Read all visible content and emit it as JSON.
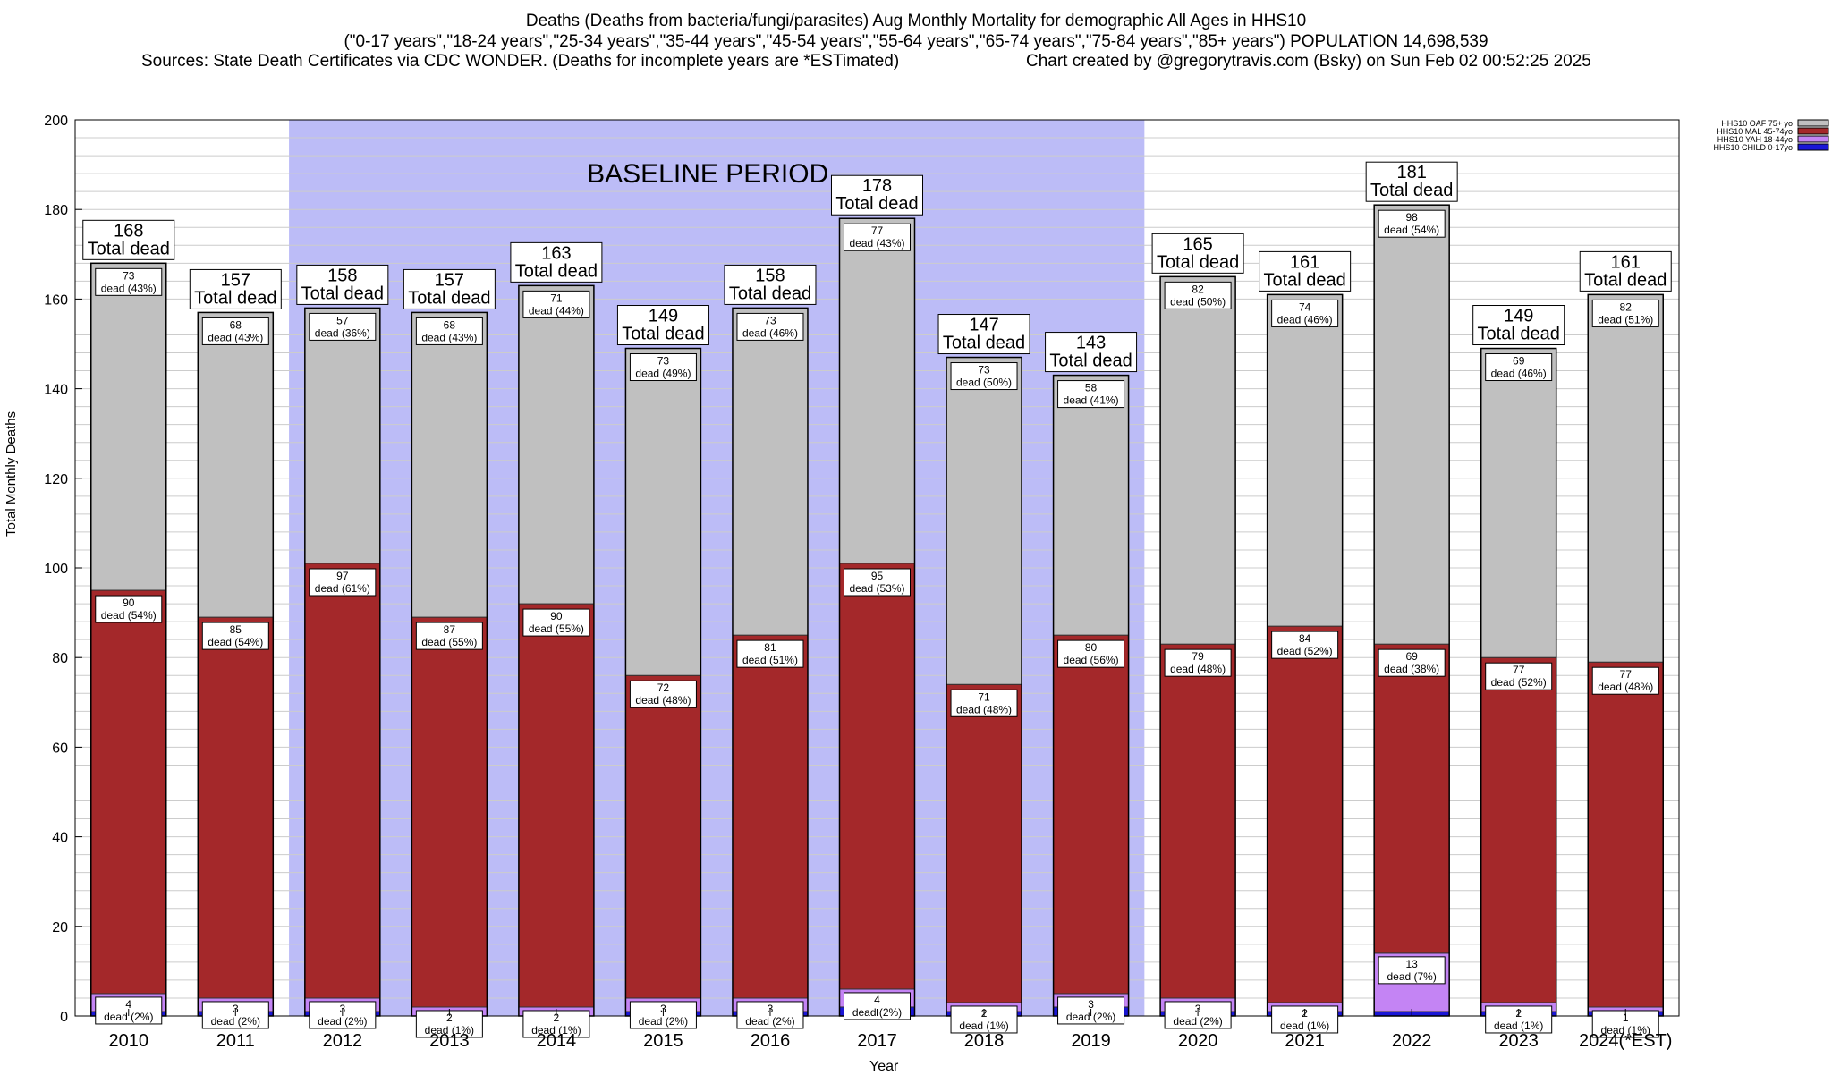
{
  "title": {
    "line1": "Deaths (Deaths from bacteria/fungi/parasites) Aug Monthly Mortality for demographic All Ages in HHS10",
    "line2": "(\"0-17 years\",\"18-24 years\",\"25-34 years\",\"35-44 years\",\"45-54 years\",\"55-64 years\",\"65-74 years\",\"75-84 years\",\"85+ years\") POPULATION 14,698,539",
    "sources": "Sources: State Death Certificates via CDC WONDER. (Deaths for incomplete years are *ESTimated)",
    "credit": "Chart created by @gregorytravis.com (Bsky) on Sun Feb 02 00:52:25 2025"
  },
  "chart_data": {
    "type": "bar",
    "stacked": true,
    "xlabel": "Year",
    "ylabel": "Total Monthly Deaths",
    "ylim": [
      0,
      200
    ],
    "yticks": [
      0,
      20,
      40,
      60,
      80,
      100,
      120,
      140,
      160,
      180,
      200
    ],
    "grid": true,
    "legend_position": "top-right",
    "categories": [
      "2010",
      "2011",
      "2012",
      "2013",
      "2014",
      "2015",
      "2016",
      "2017",
      "2018",
      "2019",
      "2020",
      "2021",
      "2022",
      "2023",
      "2024(*EST)"
    ],
    "baseline": {
      "label": "BASELINE PERIOD",
      "from": "2012",
      "to": "2019",
      "color": "#bcbcf7"
    },
    "total_label_suffix": "Total dead",
    "segment_label_word": "dead",
    "series": [
      {
        "name": "HHS10 CHILD 0-17yo",
        "color": "#1a16d6",
        "values": [
          1,
          1,
          1,
          0,
          0,
          1,
          1,
          2,
          1,
          2,
          1,
          1,
          1,
          1,
          1
        ]
      },
      {
        "name": "HHS10 YAH 18-44yo",
        "color": "#c484f4",
        "values": [
          4,
          3,
          3,
          2,
          2,
          3,
          3,
          4,
          2,
          3,
          3,
          2,
          13,
          2,
          1
        ],
        "pct": [
          2,
          2,
          2,
          1,
          1,
          2,
          2,
          2,
          1,
          2,
          2,
          1,
          7,
          1,
          1
        ]
      },
      {
        "name": "HHS10 MAL 45-74yo",
        "color": "#a4282a",
        "values": [
          90,
          85,
          97,
          87,
          90,
          72,
          81,
          95,
          71,
          80,
          79,
          84,
          69,
          77,
          77
        ],
        "pct": [
          54,
          54,
          61,
          55,
          55,
          48,
          51,
          53,
          48,
          56,
          48,
          52,
          38,
          52,
          48
        ]
      },
      {
        "name": "HHS10 OAF 75+ yo",
        "color": "#c0c0c0",
        "values": [
          73,
          68,
          57,
          68,
          71,
          73,
          73,
          77,
          73,
          58,
          82,
          74,
          98,
          69,
          82
        ],
        "pct": [
          43,
          43,
          36,
          43,
          44,
          49,
          46,
          43,
          50,
          41,
          50,
          46,
          54,
          46,
          51
        ]
      }
    ],
    "totals": [
      168,
      157,
      158,
      157,
      163,
      149,
      158,
      178,
      147,
      143,
      165,
      161,
      181,
      149,
      161
    ]
  }
}
